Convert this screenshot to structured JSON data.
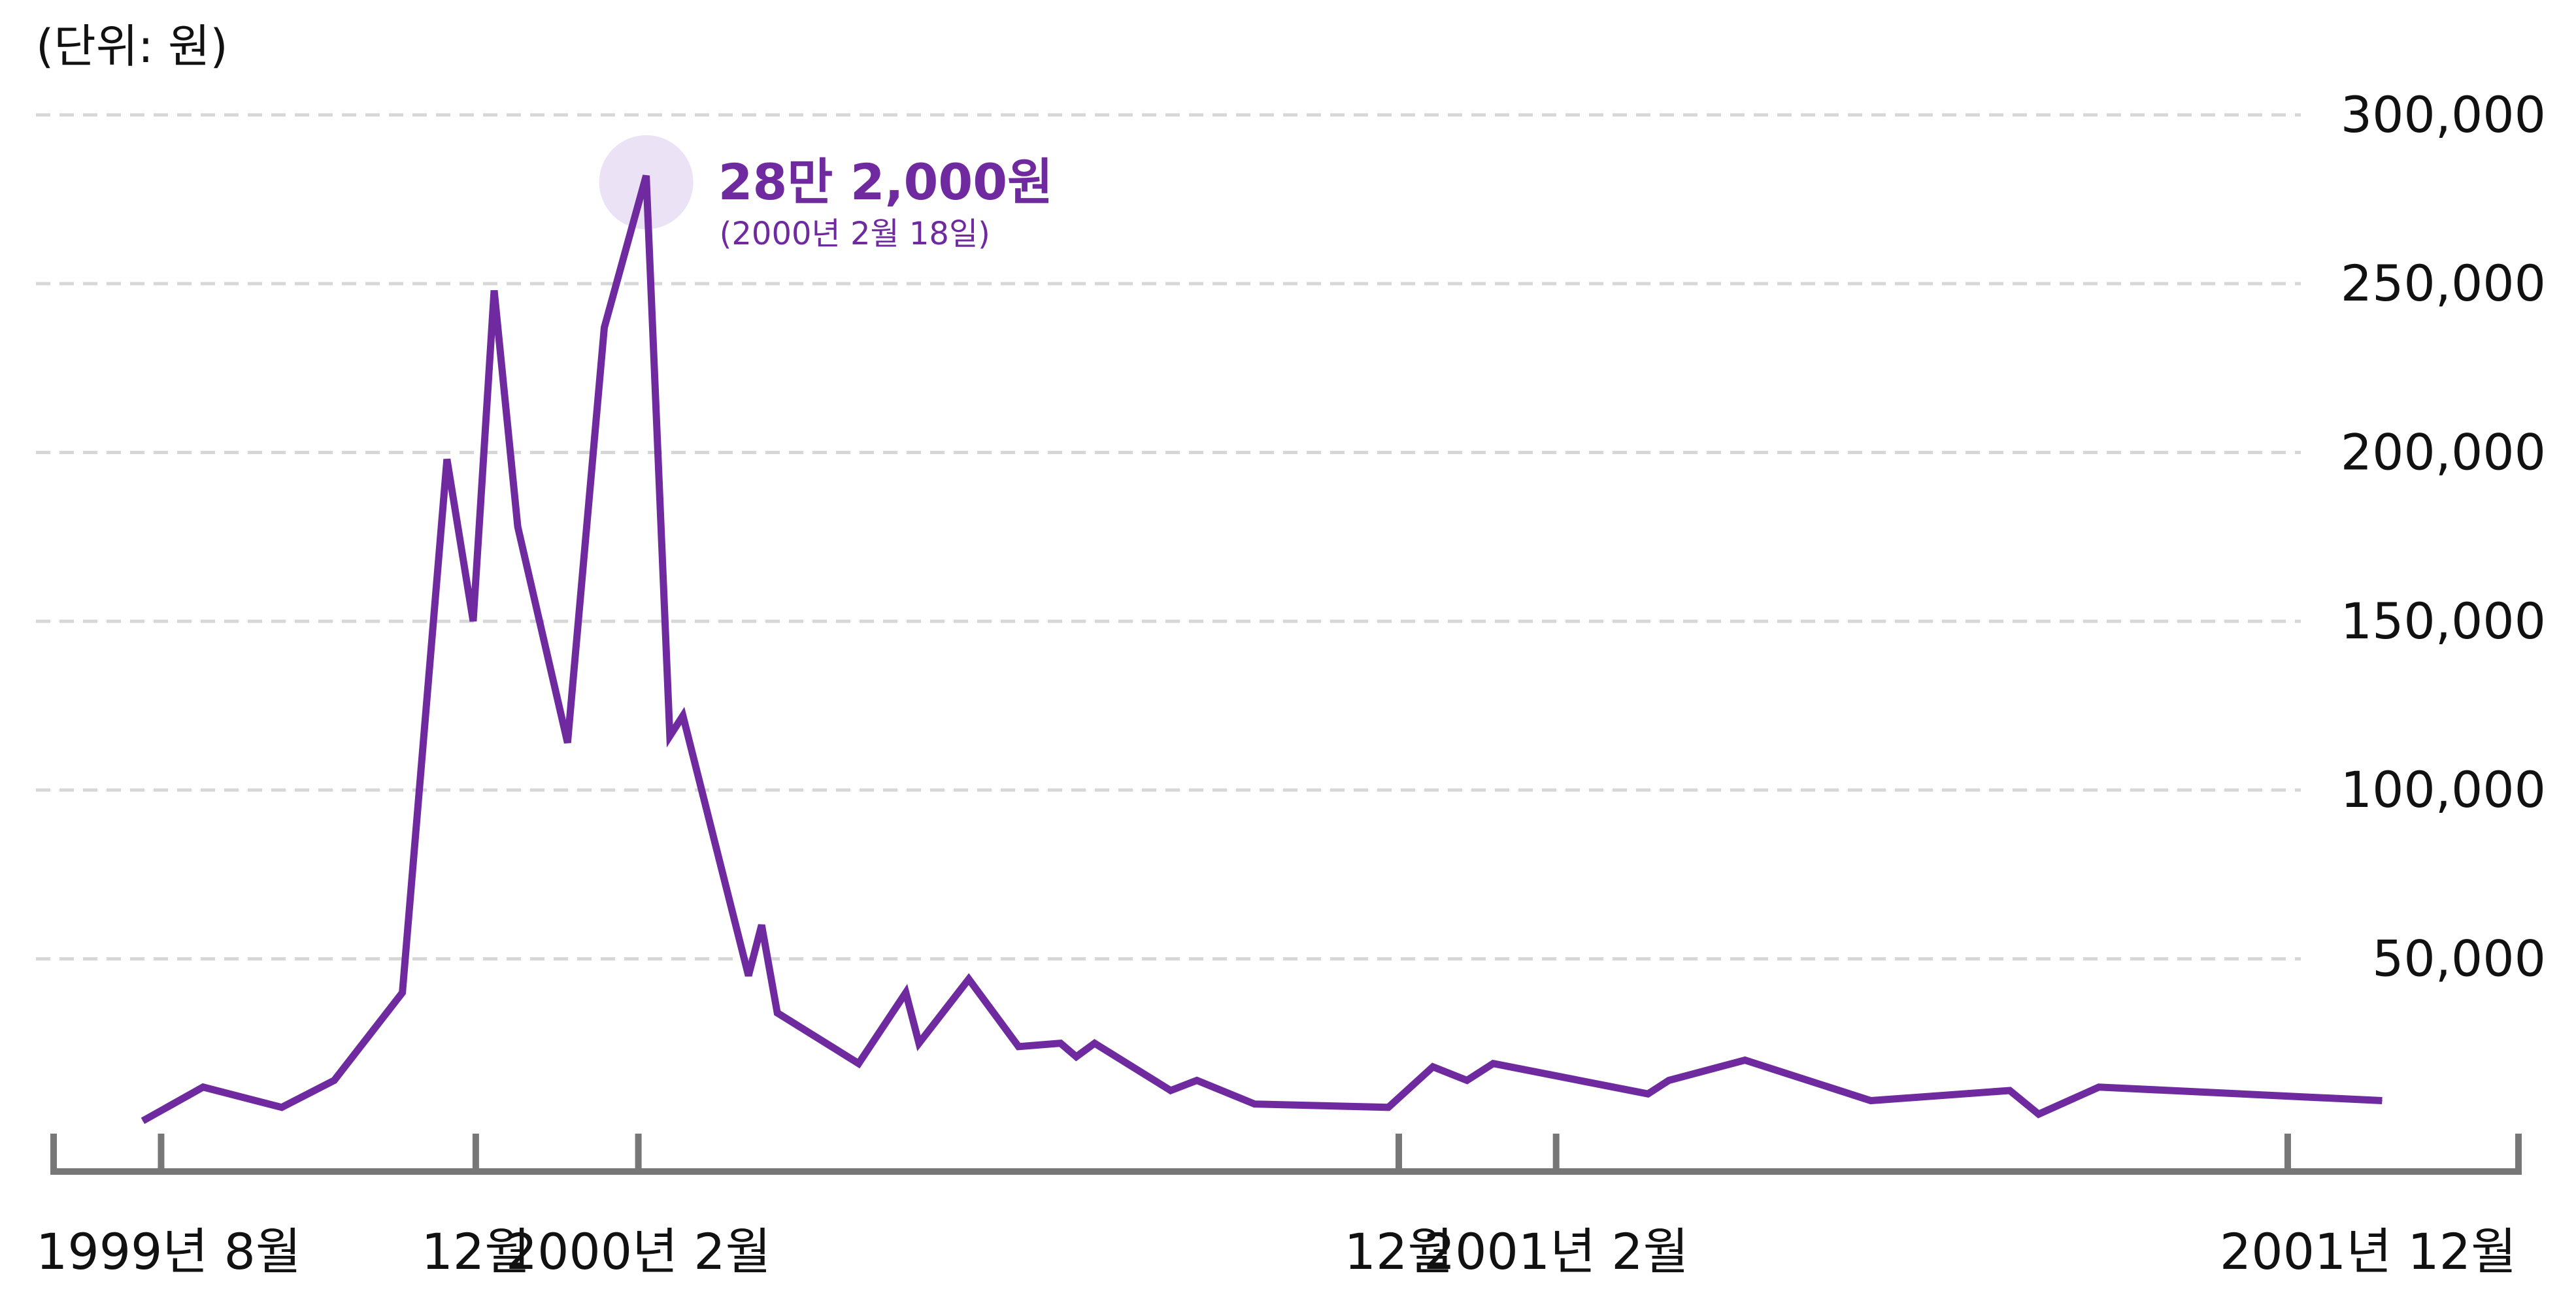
{
  "chart_data": {
    "type": "line",
    "unit_label": "(단위: 원)",
    "y_ticks": [
      "300,000",
      "250,000",
      "200,000",
      "150,000",
      "100,000",
      "50,000"
    ],
    "y_tick_values": [
      300000,
      250000,
      200000,
      150000,
      100000,
      50000
    ],
    "ylim": [
      -13000,
      305000
    ],
    "x_ticks": [
      "1999년 8월",
      "12월",
      "2000년 2월",
      "12월",
      "2001년 2월",
      "2001년 12월"
    ],
    "x_tick_index": [
      0.7,
      12.7,
      18.9,
      47.9,
      53.9,
      81.8
    ],
    "xlim": [
      -3.4,
      90.6
    ],
    "grid": true,
    "grid_style": "dashed horizontal",
    "peak_annotation": {
      "value_label": "28만 2,000원",
      "date_label": "(2000년 2월 18일)",
      "x": 19.2,
      "y": 282000
    },
    "series": [
      {
        "points": [
          [
            0.0,
            2000
          ],
          [
            2.3,
            12000
          ],
          [
            5.3,
            6000
          ],
          [
            7.3,
            14000
          ],
          [
            9.9,
            40000
          ],
          [
            11.6,
            198000
          ],
          [
            12.6,
            150000
          ],
          [
            13.4,
            248000
          ],
          [
            14.3,
            178000
          ],
          [
            16.2,
            114000
          ],
          [
            17.6,
            237000
          ],
          [
            19.2,
            282000
          ],
          [
            20.1,
            116000
          ],
          [
            20.6,
            122000
          ],
          [
            23.1,
            45000
          ],
          [
            23.6,
            60000
          ],
          [
            24.2,
            34000
          ],
          [
            27.3,
            19000
          ],
          [
            29.1,
            40000
          ],
          [
            29.6,
            25000
          ],
          [
            31.5,
            44000
          ],
          [
            33.4,
            24000
          ],
          [
            35.0,
            25000
          ],
          [
            35.6,
            21000
          ],
          [
            36.3,
            25000
          ],
          [
            39.2,
            11000
          ],
          [
            40.2,
            14000
          ],
          [
            42.4,
            7000
          ],
          [
            47.5,
            6000
          ],
          [
            49.2,
            18000
          ],
          [
            50.5,
            14000
          ],
          [
            51.5,
            19000
          ],
          [
            57.4,
            10000
          ],
          [
            58.2,
            14000
          ],
          [
            61.1,
            20000
          ],
          [
            65.9,
            8000
          ],
          [
            71.2,
            11000
          ],
          [
            72.3,
            4000
          ],
          [
            74.6,
            12000
          ],
          [
            85.4,
            8000
          ]
        ]
      }
    ],
    "colors": {
      "line": "#6e2a9e",
      "peak_halo": "#ece2f5",
      "annotation_text": "#6e2a9e",
      "axis": "#777777",
      "grid": "#d7d7d7",
      "tick_text": "#111111"
    }
  }
}
